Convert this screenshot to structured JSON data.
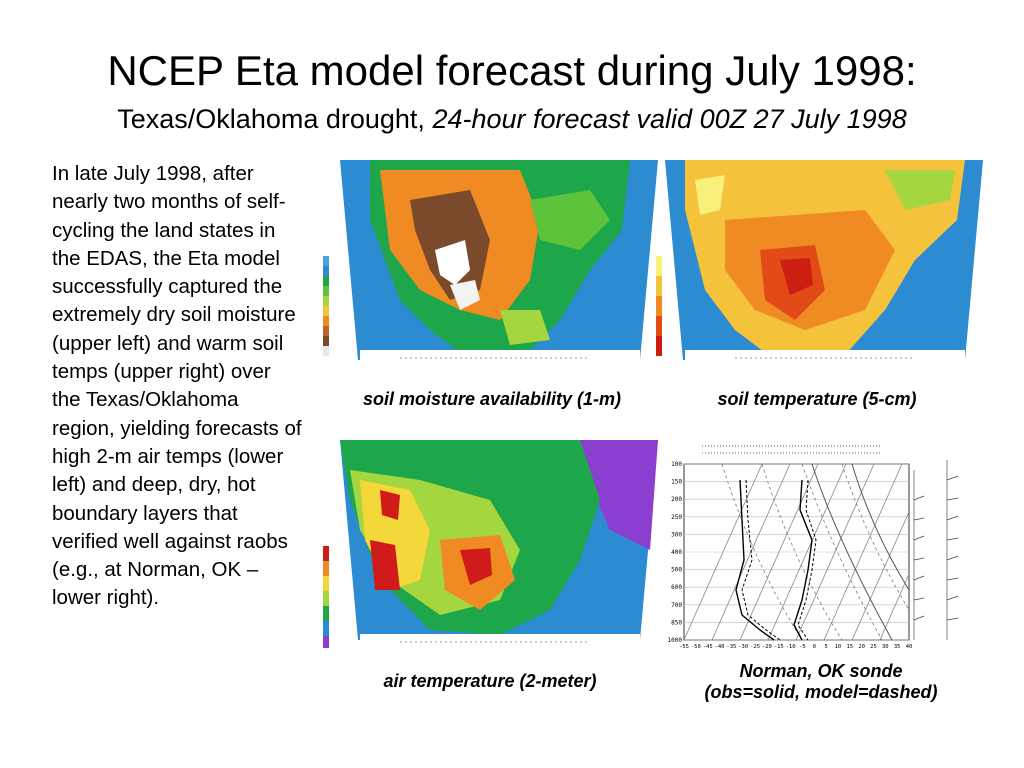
{
  "slide": {
    "title": "NCEP Eta model forecast during July 1998:",
    "subtitle_plain": "Texas/Oklahoma drought, ",
    "subtitle_italic": "24-hour forecast valid 00Z 27 July 1998",
    "body_text": "In late July 1998, after nearly two months of self-cycling the land states in the EDAS, the Eta model successfully captured the extremely dry soil moisture (upper left) and warm soil temps (upper right) over the Texas/Oklahoma region, yielding forecasts of high 2-m air temps (lower left) and deep, dry, hot boundary layers that verified well against raobs  (e.g., at Norman, OK – lower right)."
  },
  "panels": {
    "soil_moisture": {
      "caption": "soil moisture availability (1-m)"
    },
    "soil_temperature": {
      "caption": "soil temperature (5-cm)"
    },
    "air_temperature": {
      "caption": "air temperature (2-meter)"
    },
    "sonde": {
      "caption_line1": "Norman, OK sonde",
      "caption_line2": "(obs=solid, model=dashed)",
      "pressure_levels": [
        "100",
        "150",
        "200",
        "250",
        "300",
        "400",
        "500",
        "600",
        "700",
        "850",
        "1000"
      ],
      "temp_ticks": [
        "-55",
        "-50",
        "-45",
        "-40",
        "-35",
        "-30",
        "-25",
        "-20",
        "-15",
        "-10",
        "-5",
        "0",
        "5",
        "10",
        "15",
        "20",
        "25",
        "30",
        "35",
        "40"
      ]
    }
  },
  "colors": {
    "soil_moisture_scale": [
      "#4aa3d8",
      "#2d8bd1",
      "#1ea64a",
      "#5cc33a",
      "#a4d640",
      "#f4c23b",
      "#ef8b22",
      "#c0632a",
      "#7b4a2a",
      "#ffffff"
    ],
    "soil_temperature_scale": [
      "#f7f07a",
      "#f4c23b",
      "#ef8b22",
      "#e24a18",
      "#cc1f12"
    ],
    "air_temperature_scale": [
      "#d11a1a",
      "#ef8b22",
      "#f4d83a",
      "#a4d640",
      "#1ea64a",
      "#2d8bd1",
      "#8b3fd0"
    ]
  }
}
